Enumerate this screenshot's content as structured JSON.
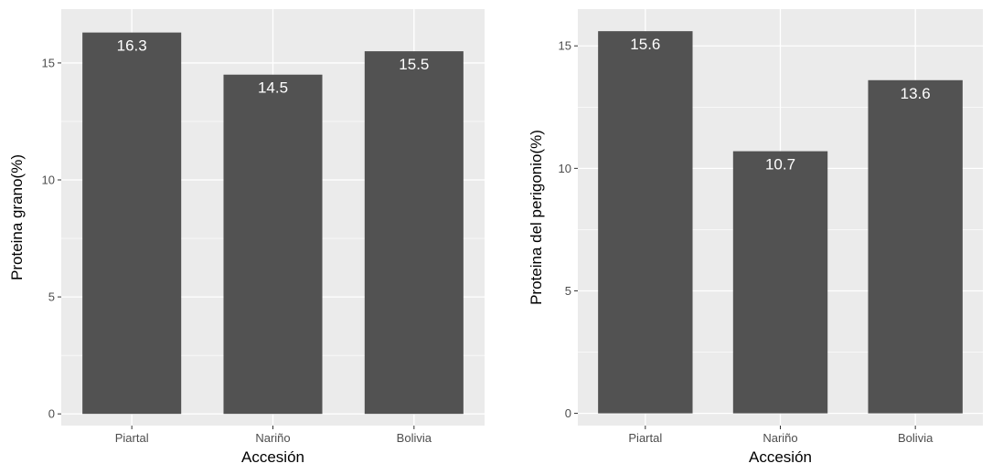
{
  "chart_data": [
    {
      "type": "bar",
      "categories": [
        "Piartal",
        "Nariño",
        "Bolivia"
      ],
      "values": [
        16.3,
        14.5,
        15.5
      ],
      "data_labels": [
        "16.3",
        "14.5",
        "15.5"
      ],
      "xlabel": "Accesión",
      "ylabel": "Proteina grano(%)",
      "yticks": [
        0,
        5,
        10,
        15
      ],
      "ylim": [
        -0.5,
        17.3
      ],
      "grid": true,
      "colors": {
        "bar": "#525252",
        "panel_bg": "#ebebeb",
        "grid": "#ffffff"
      }
    },
    {
      "type": "bar",
      "categories": [
        "Piartal",
        "Nariño",
        "Bolivia"
      ],
      "values": [
        15.6,
        10.7,
        13.6
      ],
      "data_labels": [
        "15.6",
        "10.7",
        "13.6"
      ],
      "xlabel": "Accesión",
      "ylabel": "Proteina del perigonio(%)",
      "yticks": [
        0,
        5,
        10,
        15
      ],
      "ylim": [
        -0.5,
        16.5
      ],
      "grid": true,
      "colors": {
        "bar": "#525252",
        "panel_bg": "#ebebeb",
        "grid": "#ffffff"
      }
    }
  ]
}
